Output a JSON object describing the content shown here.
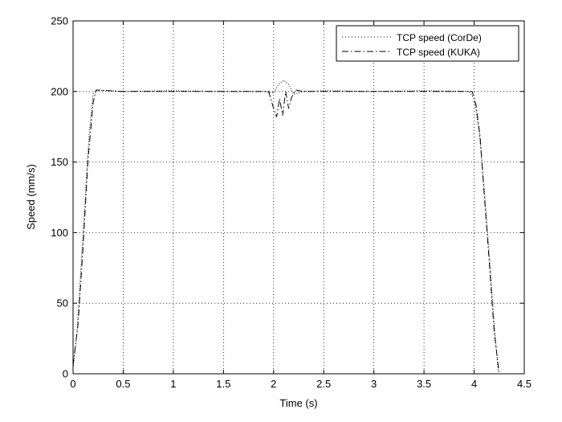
{
  "chart_data": {
    "type": "line",
    "title": "",
    "xlabel": "Time (s)",
    "ylabel": "Speed (mm/s)",
    "xlim": [
      0,
      4.5
    ],
    "ylim": [
      0,
      250
    ],
    "x_ticks": [
      "0",
      "0.5",
      "1",
      "1.5",
      "2",
      "2.5",
      "3",
      "3.5",
      "4",
      "4.5"
    ],
    "y_ticks": [
      "0",
      "50",
      "100",
      "150",
      "200",
      "250"
    ],
    "grid": true,
    "legend_position": "top-right",
    "series": [
      {
        "name": "TCP speed (CorDe)",
        "style": "dotted",
        "color": "#000000",
        "points": [
          [
            0.0,
            4
          ],
          [
            0.04,
            30
          ],
          [
            0.1,
            100
          ],
          [
            0.16,
            170
          ],
          [
            0.2,
            198
          ],
          [
            0.24,
            201
          ],
          [
            0.5,
            200
          ],
          [
            1.0,
            200.5
          ],
          [
            1.5,
            200
          ],
          [
            1.9,
            200
          ],
          [
            2.0,
            199
          ],
          [
            2.05,
            205
          ],
          [
            2.1,
            208
          ],
          [
            2.15,
            205
          ],
          [
            2.2,
            198
          ],
          [
            2.3,
            200
          ],
          [
            2.5,
            200.5
          ],
          [
            3.0,
            200
          ],
          [
            3.5,
            200.5
          ],
          [
            3.95,
            200
          ],
          [
            4.0,
            195
          ],
          [
            4.05,
            172
          ],
          [
            4.1,
            132
          ],
          [
            4.15,
            85
          ],
          [
            4.2,
            35
          ],
          [
            4.24,
            2
          ]
        ]
      },
      {
        "name": "TCP speed (KUKA)",
        "style": "dashdot",
        "color": "#000000",
        "points": [
          [
            0.0,
            6
          ],
          [
            0.05,
            35
          ],
          [
            0.1,
            90
          ],
          [
            0.15,
            152
          ],
          [
            0.2,
            192
          ],
          [
            0.23,
            201
          ],
          [
            0.5,
            200
          ],
          [
            1.0,
            200
          ],
          [
            1.5,
            200
          ],
          [
            1.95,
            200
          ],
          [
            2.0,
            188
          ],
          [
            2.03,
            182
          ],
          [
            2.06,
            195
          ],
          [
            2.09,
            183
          ],
          [
            2.12,
            200
          ],
          [
            2.15,
            188
          ],
          [
            2.18,
            196
          ],
          [
            2.22,
            201
          ],
          [
            2.3,
            200
          ],
          [
            2.5,
            200
          ],
          [
            3.0,
            200
          ],
          [
            3.5,
            200
          ],
          [
            3.98,
            200
          ],
          [
            4.02,
            190
          ],
          [
            4.06,
            168
          ],
          [
            4.1,
            128
          ],
          [
            4.15,
            80
          ],
          [
            4.2,
            30
          ],
          [
            4.25,
            0
          ]
        ]
      }
    ]
  }
}
